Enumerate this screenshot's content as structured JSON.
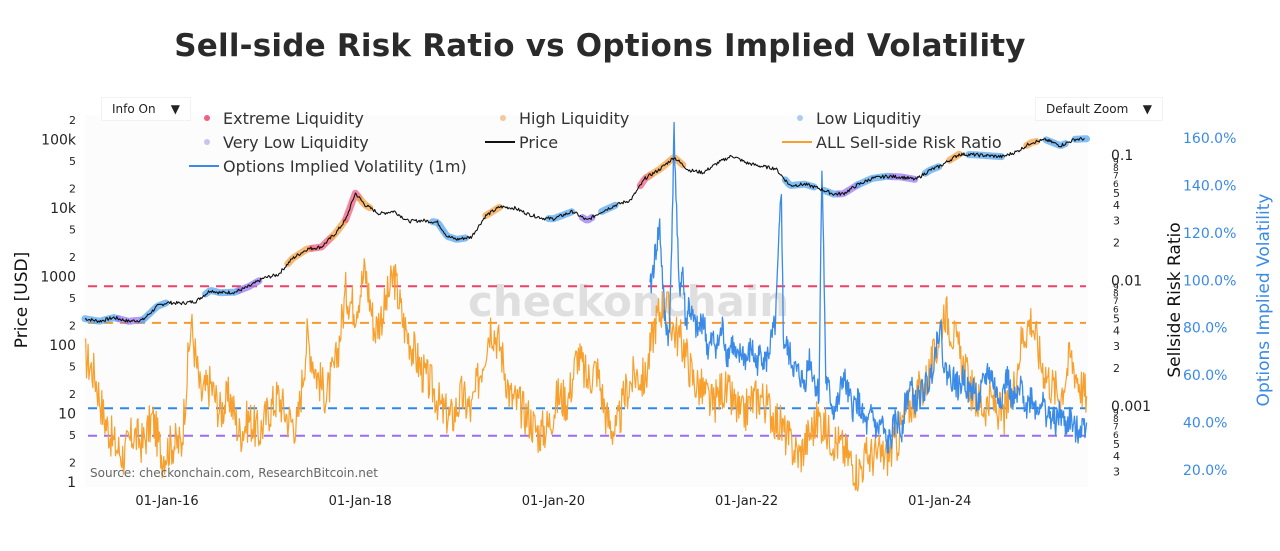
{
  "title": "Sell-side Risk Ratio vs Options Implied Volatility",
  "controls": {
    "info_dropdown": {
      "label": "Info On",
      "icon": "triangle-down-icon"
    },
    "zoom_dropdown": {
      "label": "Default Zoom",
      "icon": "triangle-down-icon"
    }
  },
  "source": "Source: checkonchain.com, ResearchBitcoin.net",
  "watermark": "checkonchain",
  "colors": {
    "extreme": "#f0607f",
    "high": "#f5a54a",
    "low": "#5aa9f0",
    "very_low": "#9b7cf0",
    "price": "#111111",
    "ssr": "#f7a02e",
    "iv": "#3a8ae8",
    "line_extreme": "#f0406a",
    "line_high": "#f59a2e",
    "line_low": "#2f86e8",
    "line_very_low": "#9b6cf0"
  },
  "chart_data": {
    "type": "line",
    "title": "Sell-side Risk Ratio vs Options Implied Volatility",
    "legend": [
      {
        "name": "Extreme Liquidity",
        "marker": "dot",
        "color": "#f0607f"
      },
      {
        "name": "High Liquidity",
        "marker": "dot",
        "color": "#f5c79a"
      },
      {
        "name": "Low Liquditiy",
        "marker": "dot",
        "color": "#a9cdf2"
      },
      {
        "name": "Very Low Liquidity",
        "marker": "dot",
        "color": "#c9c2f2"
      },
      {
        "name": "Price",
        "marker": "line",
        "color": "#111111"
      },
      {
        "name": "ALL Sell-side Risk Ratio",
        "marker": "line",
        "color": "#f7a02e"
      },
      {
        "name": "Options Implied Volatility (1m)",
        "marker": "line",
        "color": "#3a8ae8"
      }
    ],
    "legend_position": "top",
    "x_axis": {
      "type": "date",
      "range": [
        "2015-03",
        "2025-06"
      ],
      "ticks": [
        "01-Jan-16",
        "01-Jan-18",
        "01-Jan-20",
        "01-Jan-22",
        "01-Jan-24"
      ],
      "tick_years": [
        2016,
        2018,
        2020,
        2022,
        2024
      ]
    },
    "y_axis_left": {
      "label": "Price [USD]",
      "scale": "log",
      "range": [
        1,
        250000
      ],
      "ticks": [
        {
          "v": 1,
          "t": "1"
        },
        {
          "v": 2,
          "t": "2"
        },
        {
          "v": 5,
          "t": "5"
        },
        {
          "v": 10,
          "t": "10"
        },
        {
          "v": 20,
          "t": "2"
        },
        {
          "v": 50,
          "t": "5"
        },
        {
          "v": 100,
          "t": "100"
        },
        {
          "v": 200,
          "t": "2"
        },
        {
          "v": 500,
          "t": "5"
        },
        {
          "v": 1000,
          "t": "1000"
        },
        {
          "v": 2000,
          "t": "2"
        },
        {
          "v": 5000,
          "t": "5"
        },
        {
          "v": 10000,
          "t": "10k"
        },
        {
          "v": 20000,
          "t": "2"
        },
        {
          "v": 50000,
          "t": "5"
        },
        {
          "v": 100000,
          "t": "100k"
        },
        {
          "v": 200000,
          "t": "2"
        }
      ]
    },
    "y_axis_right": {
      "label": "Sellside Risk Ratio",
      "scale": "log",
      "range": [
        0.00025,
        0.12
      ],
      "major_ticks": [
        {
          "v": 0.1,
          "t": "0.1"
        },
        {
          "v": 0.01,
          "t": "0.01"
        },
        {
          "v": 0.001,
          "t": "0.001"
        }
      ],
      "minor_ticks": [
        {
          "v": 0.09,
          "t": "9"
        },
        {
          "v": 0.08,
          "t": "8"
        },
        {
          "v": 0.07,
          "t": "7"
        },
        {
          "v": 0.06,
          "t": "6"
        },
        {
          "v": 0.05,
          "t": "5"
        },
        {
          "v": 0.04,
          "t": "4"
        },
        {
          "v": 0.03,
          "t": "3"
        },
        {
          "v": 0.02,
          "t": "2"
        },
        {
          "v": 0.009,
          "t": "9"
        },
        {
          "v": 0.008,
          "t": "8"
        },
        {
          "v": 0.007,
          "t": "7"
        },
        {
          "v": 0.006,
          "t": "6"
        },
        {
          "v": 0.005,
          "t": "5"
        },
        {
          "v": 0.004,
          "t": "4"
        },
        {
          "v": 0.003,
          "t": "3"
        },
        {
          "v": 0.002,
          "t": "2"
        },
        {
          "v": 0.0009,
          "t": "9"
        },
        {
          "v": 0.0008,
          "t": "8"
        },
        {
          "v": 0.0007,
          "t": "7"
        },
        {
          "v": 0.0006,
          "t": "6"
        },
        {
          "v": 0.0005,
          "t": "5"
        },
        {
          "v": 0.0004,
          "t": "4"
        },
        {
          "v": 0.0003,
          "t": "3"
        }
      ]
    },
    "y_axis_iv": {
      "label": "Options Implied Volatility",
      "scale": "linear",
      "range": [
        0.155,
        1.635
      ],
      "ticks": [
        {
          "v": 0.2,
          "t": "20.0%"
        },
        {
          "v": 0.4,
          "t": "40.0%"
        },
        {
          "v": 0.6,
          "t": "60.0%"
        },
        {
          "v": 0.8,
          "t": "80.0%"
        },
        {
          "v": 1.0,
          "t": "100.0%"
        },
        {
          "v": 1.2,
          "t": "120.0%"
        },
        {
          "v": 1.4,
          "t": "140.0%"
        },
        {
          "v": 1.6,
          "t": "160.0%"
        }
      ]
    },
    "threshold_lines": [
      {
        "name": "Extreme Liquidity threshold",
        "ssr": 0.009,
        "color": "#f0406a"
      },
      {
        "name": "High Liquidity threshold",
        "ssr": 0.0046,
        "color": "#f59a2e"
      },
      {
        "name": "Low Liquidity threshold",
        "ssr": 0.00096,
        "color": "#2f86e8"
      },
      {
        "name": "Very Low Liquidity threshold",
        "ssr": 0.00058,
        "color": "#9b6cf0"
      }
    ],
    "series": [
      {
        "name": "Price",
        "axis": "left",
        "x": [
          2015.15,
          2015.3,
          2015.45,
          2015.6,
          2015.75,
          2015.9,
          2016.0,
          2016.15,
          2016.3,
          2016.45,
          2016.55,
          2016.7,
          2016.85,
          2017.0,
          2017.15,
          2017.3,
          2017.45,
          2017.6,
          2017.75,
          2017.85,
          2017.95,
          2018.05,
          2018.2,
          2018.35,
          2018.5,
          2018.65,
          2018.8,
          2018.9,
          2019.0,
          2019.15,
          2019.3,
          2019.45,
          2019.6,
          2019.75,
          2019.9,
          2020.0,
          2020.2,
          2020.35,
          2020.5,
          2020.65,
          2020.8,
          2020.95,
          2021.1,
          2021.25,
          2021.4,
          2021.55,
          2021.7,
          2021.85,
          2022.0,
          2022.15,
          2022.3,
          2022.45,
          2022.6,
          2022.75,
          2022.9,
          2023.0,
          2023.15,
          2023.3,
          2023.45,
          2023.6,
          2023.75,
          2023.9,
          2024.0,
          2024.2,
          2024.35,
          2024.5,
          2024.65,
          2024.8,
          2024.95,
          2025.1,
          2025.25,
          2025.4,
          2025.5
        ],
        "values": [
          250,
          230,
          260,
          230,
          240,
          380,
          430,
          420,
          450,
          650,
          600,
          610,
          740,
          980,
          1100,
          1900,
          2600,
          2800,
          4500,
          7000,
          17000,
          11500,
          8500,
          9300,
          6600,
          6800,
          6400,
          4000,
          3600,
          3900,
          8000,
          10800,
          10300,
          8300,
          7300,
          7200,
          9200,
          6800,
          9200,
          11500,
          13500,
          28000,
          38000,
          57000,
          37000,
          34000,
          47000,
          60000,
          47000,
          42000,
          39000,
          22000,
          23000,
          20000,
          16500,
          16700,
          22500,
          28000,
          30000,
          29300,
          27000,
          37000,
          42000,
          63000,
          62000,
          60000,
          58000,
          69000,
          94000,
          102000,
          84000,
          104000,
          106000
        ]
      },
      {
        "name": "ALL Sell-side Risk Ratio",
        "axis": "right",
        "x": [
          2015.15,
          2015.25,
          2015.35,
          2015.45,
          2015.55,
          2015.65,
          2015.75,
          2015.85,
          2015.95,
          2016.05,
          2016.15,
          2016.25,
          2016.35,
          2016.45,
          2016.55,
          2016.65,
          2016.75,
          2016.85,
          2016.95,
          2017.05,
          2017.15,
          2017.25,
          2017.35,
          2017.45,
          2017.55,
          2017.65,
          2017.75,
          2017.85,
          2017.95,
          2018.05,
          2018.15,
          2018.25,
          2018.35,
          2018.45,
          2018.55,
          2018.65,
          2018.75,
          2018.85,
          2018.95,
          2019.05,
          2019.15,
          2019.25,
          2019.35,
          2019.45,
          2019.55,
          2019.65,
          2019.75,
          2019.85,
          2019.95,
          2020.05,
          2020.15,
          2020.25,
          2020.35,
          2020.45,
          2020.55,
          2020.65,
          2020.75,
          2020.85,
          2020.95,
          2021.05,
          2021.15,
          2021.25,
          2021.35,
          2021.45,
          2021.55,
          2021.65,
          2021.75,
          2021.85,
          2021.95,
          2022.05,
          2022.15,
          2022.25,
          2022.35,
          2022.45,
          2022.55,
          2022.65,
          2022.75,
          2022.85,
          2022.95,
          2023.05,
          2023.15,
          2023.25,
          2023.35,
          2023.45,
          2023.55,
          2023.65,
          2023.75,
          2023.85,
          2023.95,
          2024.05,
          2024.15,
          2024.25,
          2024.35,
          2024.45,
          2024.55,
          2024.65,
          2024.75,
          2024.85,
          2024.95,
          2025.05,
          2025.15,
          2025.25,
          2025.35,
          2025.45,
          2025.52
        ],
        "values": [
          0.0025,
          0.0018,
          0.0008,
          0.0005,
          0.0004,
          0.0006,
          0.0005,
          0.0008,
          0.0004,
          0.0005,
          0.0005,
          0.0045,
          0.0012,
          0.0015,
          0.0009,
          0.0012,
          0.0006,
          0.0008,
          0.0006,
          0.0009,
          0.0012,
          0.0008,
          0.0007,
          0.0035,
          0.0018,
          0.0012,
          0.0022,
          0.008,
          0.006,
          0.012,
          0.004,
          0.006,
          0.011,
          0.0045,
          0.0028,
          0.0018,
          0.0014,
          0.0009,
          0.0008,
          0.0012,
          0.0009,
          0.002,
          0.0045,
          0.003,
          0.0012,
          0.001,
          0.0008,
          0.0006,
          0.0007,
          0.0012,
          0.0011,
          0.0026,
          0.0016,
          0.002,
          0.0008,
          0.0006,
          0.0013,
          0.0018,
          0.0016,
          0.0045,
          0.007,
          0.004,
          0.003,
          0.0016,
          0.0013,
          0.001,
          0.0014,
          0.0011,
          0.0008,
          0.0011,
          0.0012,
          0.0009,
          0.0007,
          0.0005,
          0.0004,
          0.0006,
          0.0008,
          0.0006,
          0.0005,
          0.0004,
          0.0003,
          0.0004,
          0.0004,
          0.0004,
          0.0005,
          0.0009,
          0.0012,
          0.0015,
          0.0025,
          0.006,
          0.0035,
          0.002,
          0.0012,
          0.001,
          0.0011,
          0.0008,
          0.0012,
          0.0035,
          0.005,
          0.0022,
          0.0015,
          0.0012,
          0.0025,
          0.0015,
          0.0012
        ]
      },
      {
        "name": "Options Implied Volatility (1m)",
        "axis": "iv",
        "x": [
          2021.0,
          2021.05,
          2021.1,
          2021.15,
          2021.2,
          2021.25,
          2021.3,
          2021.34,
          2021.37,
          2021.4,
          2021.45,
          2021.5,
          2021.55,
          2021.6,
          2021.65,
          2021.7,
          2021.75,
          2021.8,
          2021.85,
          2021.9,
          2021.95,
          2022.0,
          2022.05,
          2022.1,
          2022.15,
          2022.2,
          2022.3,
          2022.36,
          2022.38,
          2022.45,
          2022.5,
          2022.55,
          2022.6,
          2022.65,
          2022.7,
          2022.75,
          2022.78,
          2022.82,
          2022.86,
          2022.9,
          2022.95,
          2023.0,
          2023.05,
          2023.1,
          2023.15,
          2023.2,
          2023.25,
          2023.3,
          2023.35,
          2023.4,
          2023.45,
          2023.5,
          2023.55,
          2023.6,
          2023.65,
          2023.7,
          2023.75,
          2023.8,
          2023.85,
          2023.9,
          2023.95,
          2024.0,
          2024.05,
          2024.1,
          2024.15,
          2024.2,
          2024.25,
          2024.3,
          2024.35,
          2024.4,
          2024.45,
          2024.5,
          2024.55,
          2024.6,
          2024.65,
          2024.7,
          2024.75,
          2024.8,
          2024.85,
          2024.9,
          2024.95,
          2025.0,
          2025.05,
          2025.1,
          2025.15,
          2025.2,
          2025.25,
          2025.3,
          2025.35,
          2025.4,
          2025.45,
          2025.52
        ],
        "values": [
          0.95,
          1.1,
          1.23,
          0.85,
          0.75,
          1.62,
          0.95,
          1.05,
          0.8,
          0.9,
          0.82,
          0.78,
          0.85,
          0.7,
          0.75,
          0.72,
          0.8,
          0.68,
          0.74,
          0.65,
          0.7,
          0.66,
          0.72,
          0.64,
          0.7,
          0.65,
          0.82,
          1.4,
          0.75,
          0.68,
          0.62,
          0.6,
          0.56,
          0.68,
          0.58,
          0.52,
          1.52,
          0.58,
          0.52,
          0.45,
          0.48,
          0.6,
          0.52,
          0.46,
          0.5,
          0.42,
          0.38,
          0.44,
          0.36,
          0.4,
          0.3,
          0.34,
          0.42,
          0.36,
          0.5,
          0.55,
          0.48,
          0.52,
          0.55,
          0.58,
          0.7,
          0.82,
          0.62,
          0.6,
          0.58,
          0.54,
          0.6,
          0.52,
          0.55,
          0.48,
          0.56,
          0.62,
          0.58,
          0.5,
          0.52,
          0.6,
          0.48,
          0.5,
          0.55,
          0.46,
          0.52,
          0.45,
          0.5,
          0.44,
          0.42,
          0.4,
          0.44,
          0.38,
          0.42,
          0.36,
          0.38,
          0.4
        ]
      }
    ],
    "liquidity_zones_on_price": [
      {
        "from": 2015.15,
        "to": 2015.5,
        "zone": "Low Liquditiy"
      },
      {
        "from": 2015.5,
        "to": 2015.75,
        "zone": "Very Low Liquidity"
      },
      {
        "from": 2015.75,
        "to": 2016.0,
        "zone": "Low Liquditiy"
      },
      {
        "from": 2016.4,
        "to": 2016.75,
        "zone": "Low Liquditiy"
      },
      {
        "from": 2016.75,
        "to": 2016.95,
        "zone": "Very Low Liquidity"
      },
      {
        "from": 2017.25,
        "to": 2017.5,
        "zone": "High Liquidity"
      },
      {
        "from": 2017.5,
        "to": 2017.7,
        "zone": "Extreme Liquidity"
      },
      {
        "from": 2017.7,
        "to": 2017.85,
        "zone": "High Liquidity"
      },
      {
        "from": 2017.85,
        "to": 2018.0,
        "zone": "Extreme Liquidity"
      },
      {
        "from": 2018.0,
        "to": 2018.1,
        "zone": "High Liquidity"
      },
      {
        "from": 2018.75,
        "to": 2019.1,
        "zone": "Low Liquditiy"
      },
      {
        "from": 2019.3,
        "to": 2019.45,
        "zone": "High Liquidity"
      },
      {
        "from": 2019.95,
        "to": 2020.2,
        "zone": "Low Liquditiy"
      },
      {
        "from": 2020.3,
        "to": 2020.4,
        "zone": "Very Low Liquidity"
      },
      {
        "from": 2020.5,
        "to": 2020.65,
        "zone": "Low Liquditiy"
      },
      {
        "from": 2020.9,
        "to": 2021.0,
        "zone": "Extreme Liquidity"
      },
      {
        "from": 2021.0,
        "to": 2021.35,
        "zone": "High Liquidity"
      },
      {
        "from": 2022.4,
        "to": 2022.7,
        "zone": "Low Liquditiy"
      },
      {
        "from": 2022.8,
        "to": 2022.95,
        "zone": "Low Liquditiy"
      },
      {
        "from": 2022.95,
        "to": 2023.15,
        "zone": "Very Low Liquidity"
      },
      {
        "from": 2023.15,
        "to": 2023.5,
        "zone": "Low Liquditiy"
      },
      {
        "from": 2023.5,
        "to": 2023.75,
        "zone": "Very Low Liquidity"
      },
      {
        "from": 2023.85,
        "to": 2024.0,
        "zone": "Low Liquditiy"
      },
      {
        "from": 2024.1,
        "to": 2024.2,
        "zone": "High Liquidity"
      },
      {
        "from": 2024.3,
        "to": 2024.65,
        "zone": "Low Liquditiy"
      },
      {
        "from": 2024.9,
        "to": 2025.0,
        "zone": "High Liquidity"
      },
      {
        "from": 2025.1,
        "to": 2025.3,
        "zone": "Low Liquditiy"
      },
      {
        "from": 2025.4,
        "to": 2025.52,
        "zone": "Low Liquditiy"
      }
    ]
  }
}
